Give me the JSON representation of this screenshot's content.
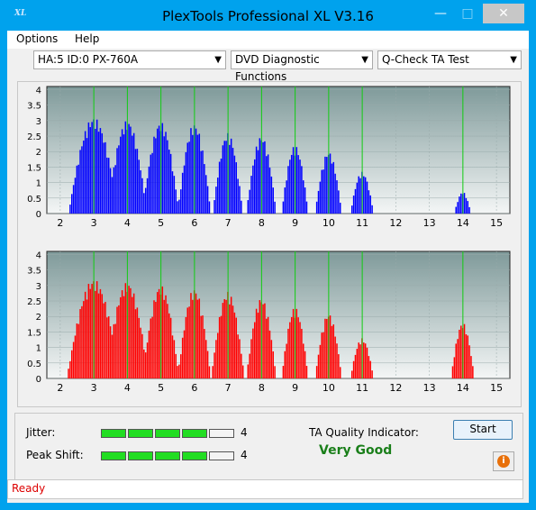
{
  "window": {
    "title": "PlexTools Professional XL V3.16",
    "icon_text": "XL"
  },
  "menu": [
    {
      "label": "Options"
    },
    {
      "label": "Help"
    }
  ],
  "toolbar": {
    "drive": "HA:5 ID:0  PX-760A",
    "function": "DVD Diagnostic Functions",
    "test": "Q-Check TA Test"
  },
  "chart_data": [
    {
      "type": "bar",
      "name": "top",
      "color": "#0000ff",
      "x_ticks": [
        "2",
        "3",
        "4",
        "5",
        "6",
        "7",
        "8",
        "9",
        "10",
        "11",
        "12",
        "13",
        "14",
        "15"
      ],
      "y_ticks": [
        "0",
        "0.5",
        "1",
        "1.5",
        "2",
        "2.5",
        "3",
        "3.5",
        "4"
      ],
      "xlim": [
        1.6,
        15.4
      ],
      "ylim": [
        0,
        4.1
      ],
      "peaks": [
        {
          "x": 3,
          "height": 3.1,
          "width": 0.75
        },
        {
          "x": 4,
          "height": 3.0,
          "width": 0.6
        },
        {
          "x": 5,
          "height": 2.95,
          "width": 0.55
        },
        {
          "x": 6,
          "height": 2.9,
          "width": 0.5
        },
        {
          "x": 7,
          "height": 2.6,
          "width": 0.45
        },
        {
          "x": 8,
          "height": 2.5,
          "width": 0.45
        },
        {
          "x": 9,
          "height": 2.2,
          "width": 0.4
        },
        {
          "x": 10,
          "height": 2.0,
          "width": 0.4
        },
        {
          "x": 11,
          "height": 1.35,
          "width": 0.35
        },
        {
          "x": 14,
          "height": 0.7,
          "width": 0.25
        }
      ],
      "marker_lines": [
        3,
        4,
        5,
        6,
        7,
        8,
        9,
        10,
        11,
        14
      ]
    },
    {
      "type": "bar",
      "name": "bottom",
      "color": "#ff0000",
      "x_ticks": [
        "2",
        "3",
        "4",
        "5",
        "6",
        "7",
        "8",
        "9",
        "10",
        "11",
        "12",
        "13",
        "14",
        "15"
      ],
      "y_ticks": [
        "0",
        "0.5",
        "1",
        "1.5",
        "2",
        "2.5",
        "3",
        "3.5",
        "4"
      ],
      "xlim": [
        1.6,
        15.4
      ],
      "ylim": [
        0,
        4.1
      ],
      "peaks": [
        {
          "x": 3,
          "height": 3.2,
          "width": 0.8
        },
        {
          "x": 4,
          "height": 3.1,
          "width": 0.65
        },
        {
          "x": 5,
          "height": 3.0,
          "width": 0.55
        },
        {
          "x": 6,
          "height": 2.9,
          "width": 0.5
        },
        {
          "x": 7,
          "height": 2.8,
          "width": 0.5
        },
        {
          "x": 8,
          "height": 2.6,
          "width": 0.45
        },
        {
          "x": 9,
          "height": 2.3,
          "width": 0.4
        },
        {
          "x": 10,
          "height": 2.1,
          "width": 0.4
        },
        {
          "x": 11,
          "height": 1.3,
          "width": 0.35
        },
        {
          "x": 14,
          "height": 1.8,
          "width": 0.35
        }
      ],
      "marker_lines": [
        3,
        4,
        5,
        6,
        7,
        8,
        9,
        10,
        11,
        14
      ]
    }
  ],
  "metrics": {
    "jitter": {
      "label": "Jitter:",
      "value": "4",
      "level": 4,
      "max": 5
    },
    "peak_shift": {
      "label": "Peak Shift:",
      "value": "4",
      "level": 4,
      "max": 5
    },
    "ta_label": "TA Quality Indicator:",
    "ta_value": "Very Good",
    "led_on_color": "#22dd22",
    "led_off_color": "#f4f4f4"
  },
  "buttons": {
    "start": "Start"
  },
  "status": {
    "text": "Ready"
  }
}
